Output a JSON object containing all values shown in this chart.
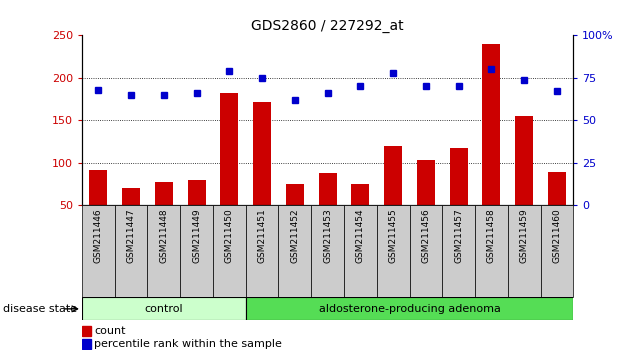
{
  "title": "GDS2860 / 227292_at",
  "samples": [
    "GSM211446",
    "GSM211447",
    "GSM211448",
    "GSM211449",
    "GSM211450",
    "GSM211451",
    "GSM211452",
    "GSM211453",
    "GSM211454",
    "GSM211455",
    "GSM211456",
    "GSM211457",
    "GSM211458",
    "GSM211459",
    "GSM211460"
  ],
  "counts": [
    92,
    70,
    78,
    80,
    182,
    172,
    75,
    88,
    75,
    120,
    103,
    117,
    240,
    155,
    89
  ],
  "percentiles": [
    68,
    65,
    65,
    66,
    79,
    75,
    62,
    66,
    70,
    78,
    70,
    70,
    80,
    74,
    67
  ],
  "control_count": 5,
  "ylim_left": [
    50,
    250
  ],
  "ylim_right": [
    0,
    100
  ],
  "yticks_left": [
    50,
    100,
    150,
    200,
    250
  ],
  "yticks_right": [
    0,
    25,
    50,
    75,
    100
  ],
  "bar_color": "#cc0000",
  "dot_color": "#0000cc",
  "control_color": "#ccffcc",
  "adenoma_color": "#55dd55",
  "label_bg_color": "#cccccc",
  "bar_bottom": 50,
  "legend_count_label": "count",
  "legend_pct_label": "percentile rank within the sample",
  "disease_state_label": "disease state",
  "control_label": "control",
  "adenoma_label": "aldosterone-producing adenoma"
}
